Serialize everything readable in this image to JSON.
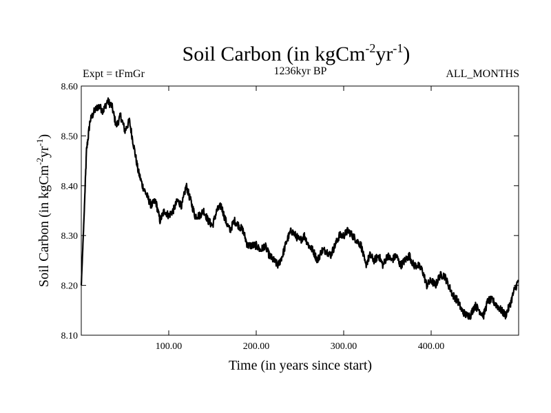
{
  "chart_data": {
    "type": "line",
    "title": {
      "base": "Soil Carbon (in kgCm",
      "sup1": "-2",
      "mid": "yr",
      "sup2": "-1",
      "end": ")"
    },
    "subtitle_left": "Expt = tFmGr",
    "subtitle_center": "1236kyr BP",
    "subtitle_right": "ALL_MONTHS",
    "xlabel": "Time (in years since start)",
    "ylabel": {
      "base": "Soil Carbon (in kgCm",
      "sup1": "-2",
      "mid": "yr",
      "sup2": "-1",
      "end": ")"
    },
    "xlim": [
      0,
      500
    ],
    "ylim": [
      8.1,
      8.6
    ],
    "x_ticks": [
      100,
      200,
      300,
      400
    ],
    "x_tick_labels": [
      "100.00",
      "200.00",
      "300.00",
      "400.00"
    ],
    "y_ticks": [
      8.1,
      8.2,
      8.3,
      8.4,
      8.5,
      8.6
    ],
    "y_tick_labels": [
      "8.10",
      "8.20",
      "8.30",
      "8.40",
      "8.50",
      "8.60"
    ],
    "grid": false,
    "series": [
      {
        "name": "Soil Carbon",
        "x": [
          0,
          3,
          6,
          10,
          15,
          20,
          25,
          30,
          35,
          40,
          45,
          50,
          55,
          60,
          65,
          70,
          75,
          80,
          85,
          90,
          95,
          100,
          105,
          110,
          115,
          120,
          125,
          130,
          135,
          140,
          145,
          150,
          155,
          160,
          165,
          170,
          175,
          180,
          185,
          190,
          195,
          200,
          205,
          210,
          215,
          220,
          225,
          230,
          235,
          240,
          245,
          250,
          255,
          260,
          265,
          270,
          275,
          280,
          285,
          290,
          295,
          300,
          305,
          310,
          315,
          320,
          325,
          330,
          335,
          340,
          345,
          350,
          355,
          360,
          365,
          370,
          375,
          380,
          385,
          390,
          395,
          400,
          405,
          410,
          415,
          420,
          425,
          430,
          435,
          440,
          445,
          450,
          455,
          460,
          465,
          470,
          475,
          480,
          485,
          490,
          495,
          500
        ],
        "values": [
          8.2,
          8.33,
          8.47,
          8.53,
          8.55,
          8.56,
          8.55,
          8.57,
          8.56,
          8.52,
          8.54,
          8.51,
          8.53,
          8.48,
          8.43,
          8.4,
          8.38,
          8.36,
          8.37,
          8.33,
          8.35,
          8.34,
          8.35,
          8.37,
          8.36,
          8.4,
          8.37,
          8.34,
          8.34,
          8.35,
          8.33,
          8.32,
          8.35,
          8.36,
          8.33,
          8.31,
          8.33,
          8.32,
          8.31,
          8.28,
          8.28,
          8.28,
          8.27,
          8.28,
          8.26,
          8.25,
          8.24,
          8.26,
          8.29,
          8.31,
          8.3,
          8.29,
          8.3,
          8.28,
          8.27,
          8.25,
          8.27,
          8.27,
          8.26,
          8.28,
          8.3,
          8.3,
          8.31,
          8.3,
          8.29,
          8.28,
          8.24,
          8.26,
          8.25,
          8.26,
          8.24,
          8.26,
          8.25,
          8.26,
          8.24,
          8.25,
          8.26,
          8.24,
          8.24,
          8.23,
          8.2,
          8.21,
          8.2,
          8.22,
          8.22,
          8.2,
          8.18,
          8.17,
          8.15,
          8.14,
          8.14,
          8.16,
          8.15,
          8.14,
          8.17,
          8.17,
          8.16,
          8.15,
          8.14,
          8.16,
          8.19,
          8.21
        ]
      }
    ]
  }
}
